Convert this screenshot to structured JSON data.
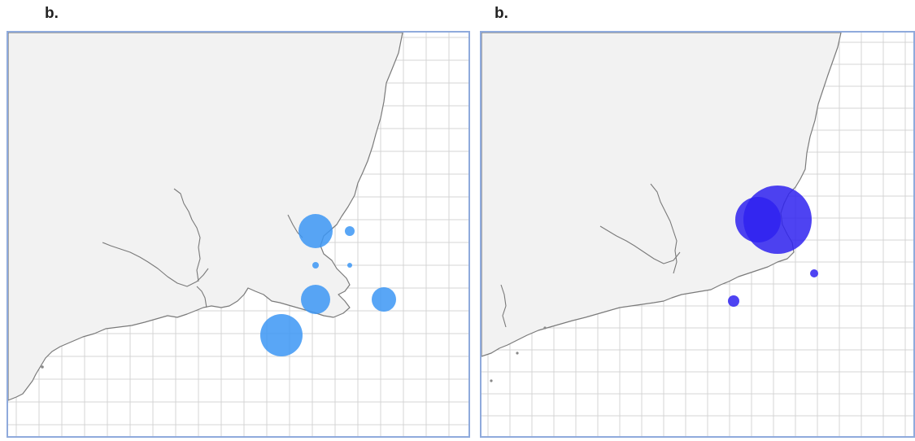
{
  "panels": [
    {
      "label": "b.",
      "marker_color": "#3c96f5",
      "marker_opacity": 0.85,
      "markers": [
        {
          "name": "bubble-1",
          "size": 21
        },
        {
          "name": "bubble-2",
          "size": 6
        },
        {
          "name": "bubble-3",
          "size": 4
        },
        {
          "name": "bubble-4",
          "size": 3
        },
        {
          "name": "bubble-5",
          "size": 18
        },
        {
          "name": "bubble-6",
          "size": 15
        },
        {
          "name": "bubble-7",
          "size": 26
        }
      ]
    },
    {
      "label": "b.",
      "marker_color": "#2f22f0",
      "marker_opacity": 0.85,
      "markers": [
        {
          "name": "bubble-1",
          "size": 42
        },
        {
          "name": "bubble-2",
          "size": 28
        },
        {
          "name": "bubble-3",
          "size": 5
        },
        {
          "name": "bubble-4",
          "size": 7
        }
      ]
    }
  ]
}
